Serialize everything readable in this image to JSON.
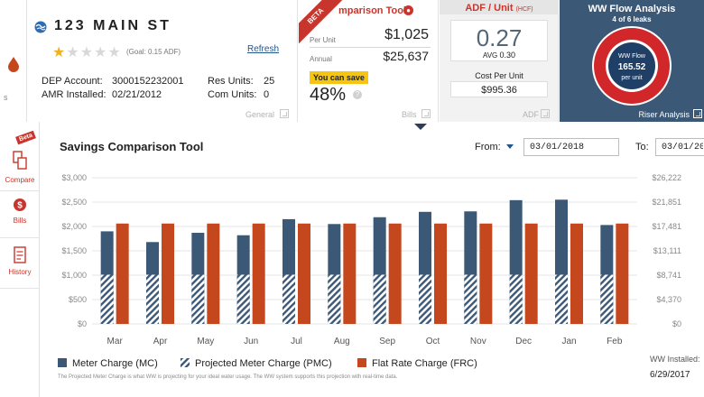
{
  "colors": {
    "meter": "#3c5877",
    "projected": "#3c5877",
    "flat": "#c5471e",
    "accent": "#c8352c",
    "ww_panel": "#3c5877"
  },
  "header": {
    "property": {
      "title": "123 MAIN ST",
      "rating": 1,
      "rating_max": 5,
      "goal": "(Goal: 0.15 ADF)",
      "refresh": "Refresh",
      "dep_label": "DEP Account:",
      "dep_value": "3000152232001",
      "amr_label": "AMR Installed:",
      "amr_value": "02/21/2012",
      "res_label": "Res Units:",
      "res_value": "25",
      "com_label": "Com Units:",
      "com_value": "0",
      "footer": "General"
    },
    "bills": {
      "beta": "BETA",
      "title": "mparison Tool",
      "per_unit_label": "Per Unit",
      "per_unit_value": "$1,025",
      "annual_label": "Annual",
      "annual_value": "$25,637",
      "save_label": "You can save",
      "save_pct": "48%",
      "help": "?",
      "footer": "Bills"
    },
    "adf": {
      "title": "ADF / Unit",
      "title_unit": "(HCF)",
      "value": "0.27",
      "avg_label": "AVG",
      "avg_value": "0.30",
      "cpu_label": "Cost Per Unit",
      "cpu_value": "$995.36",
      "footer": "ADF"
    },
    "ww": {
      "title": "WW Flow Analysis",
      "sub": "4 of 6 leaks",
      "flow_label": "WW Flow",
      "flow_value": "165.52",
      "flow_unit": "per unit",
      "footer": "Riser Analysis"
    }
  },
  "rail": {
    "beta": "Beta",
    "compare": "Compare",
    "bills": "Bills",
    "history": "History",
    "top_label": "s"
  },
  "main": {
    "title": "Savings Comparison Tool",
    "from_label": "From:",
    "from_value": "03/01/2018",
    "to_label": "To:",
    "to_value": "03/01/20",
    "ww_installed_label": "WW Installed:",
    "ww_installed_date": "6/29/2017",
    "note": "The Projected Meter Charge is what WW is projecting for your ideal water usage. The WW system supports this projection with real-time data."
  },
  "chart_data": {
    "type": "bar",
    "categories": [
      "Mar",
      "Apr",
      "May",
      "Jun",
      "Jul",
      "Aug",
      "Sep",
      "Oct",
      "Nov",
      "Dec",
      "Jan",
      "Feb"
    ],
    "series": [
      {
        "name": "Meter Charge (MC)",
        "values": [
          1900,
          1680,
          1870,
          1820,
          2150,
          2050,
          2190,
          2300,
          2310,
          2540,
          2550,
          2030
        ]
      },
      {
        "name": "Projected Meter Charge (PMC)",
        "values": [
          1010,
          1010,
          1010,
          1010,
          1010,
          1010,
          1010,
          1010,
          1010,
          1010,
          1010,
          1010
        ]
      },
      {
        "name": "Flat Rate Charge (FRC)",
        "values": [
          2060,
          2060,
          2060,
          2060,
          2060,
          2060,
          2060,
          2060,
          2060,
          2060,
          2060,
          2060
        ]
      }
    ],
    "ylim": [
      0,
      3000
    ],
    "yticks": [
      "$0",
      "$500",
      "$1,000",
      "$1,500",
      "$2,000",
      "$2,500",
      "$3,000"
    ],
    "y2ticks": [
      "$0",
      "$4,370",
      "$8,741",
      "$13,111",
      "$17,481",
      "$21,851",
      "$26,222"
    ],
    "grid": true,
    "legend_position": "bottom-left"
  }
}
